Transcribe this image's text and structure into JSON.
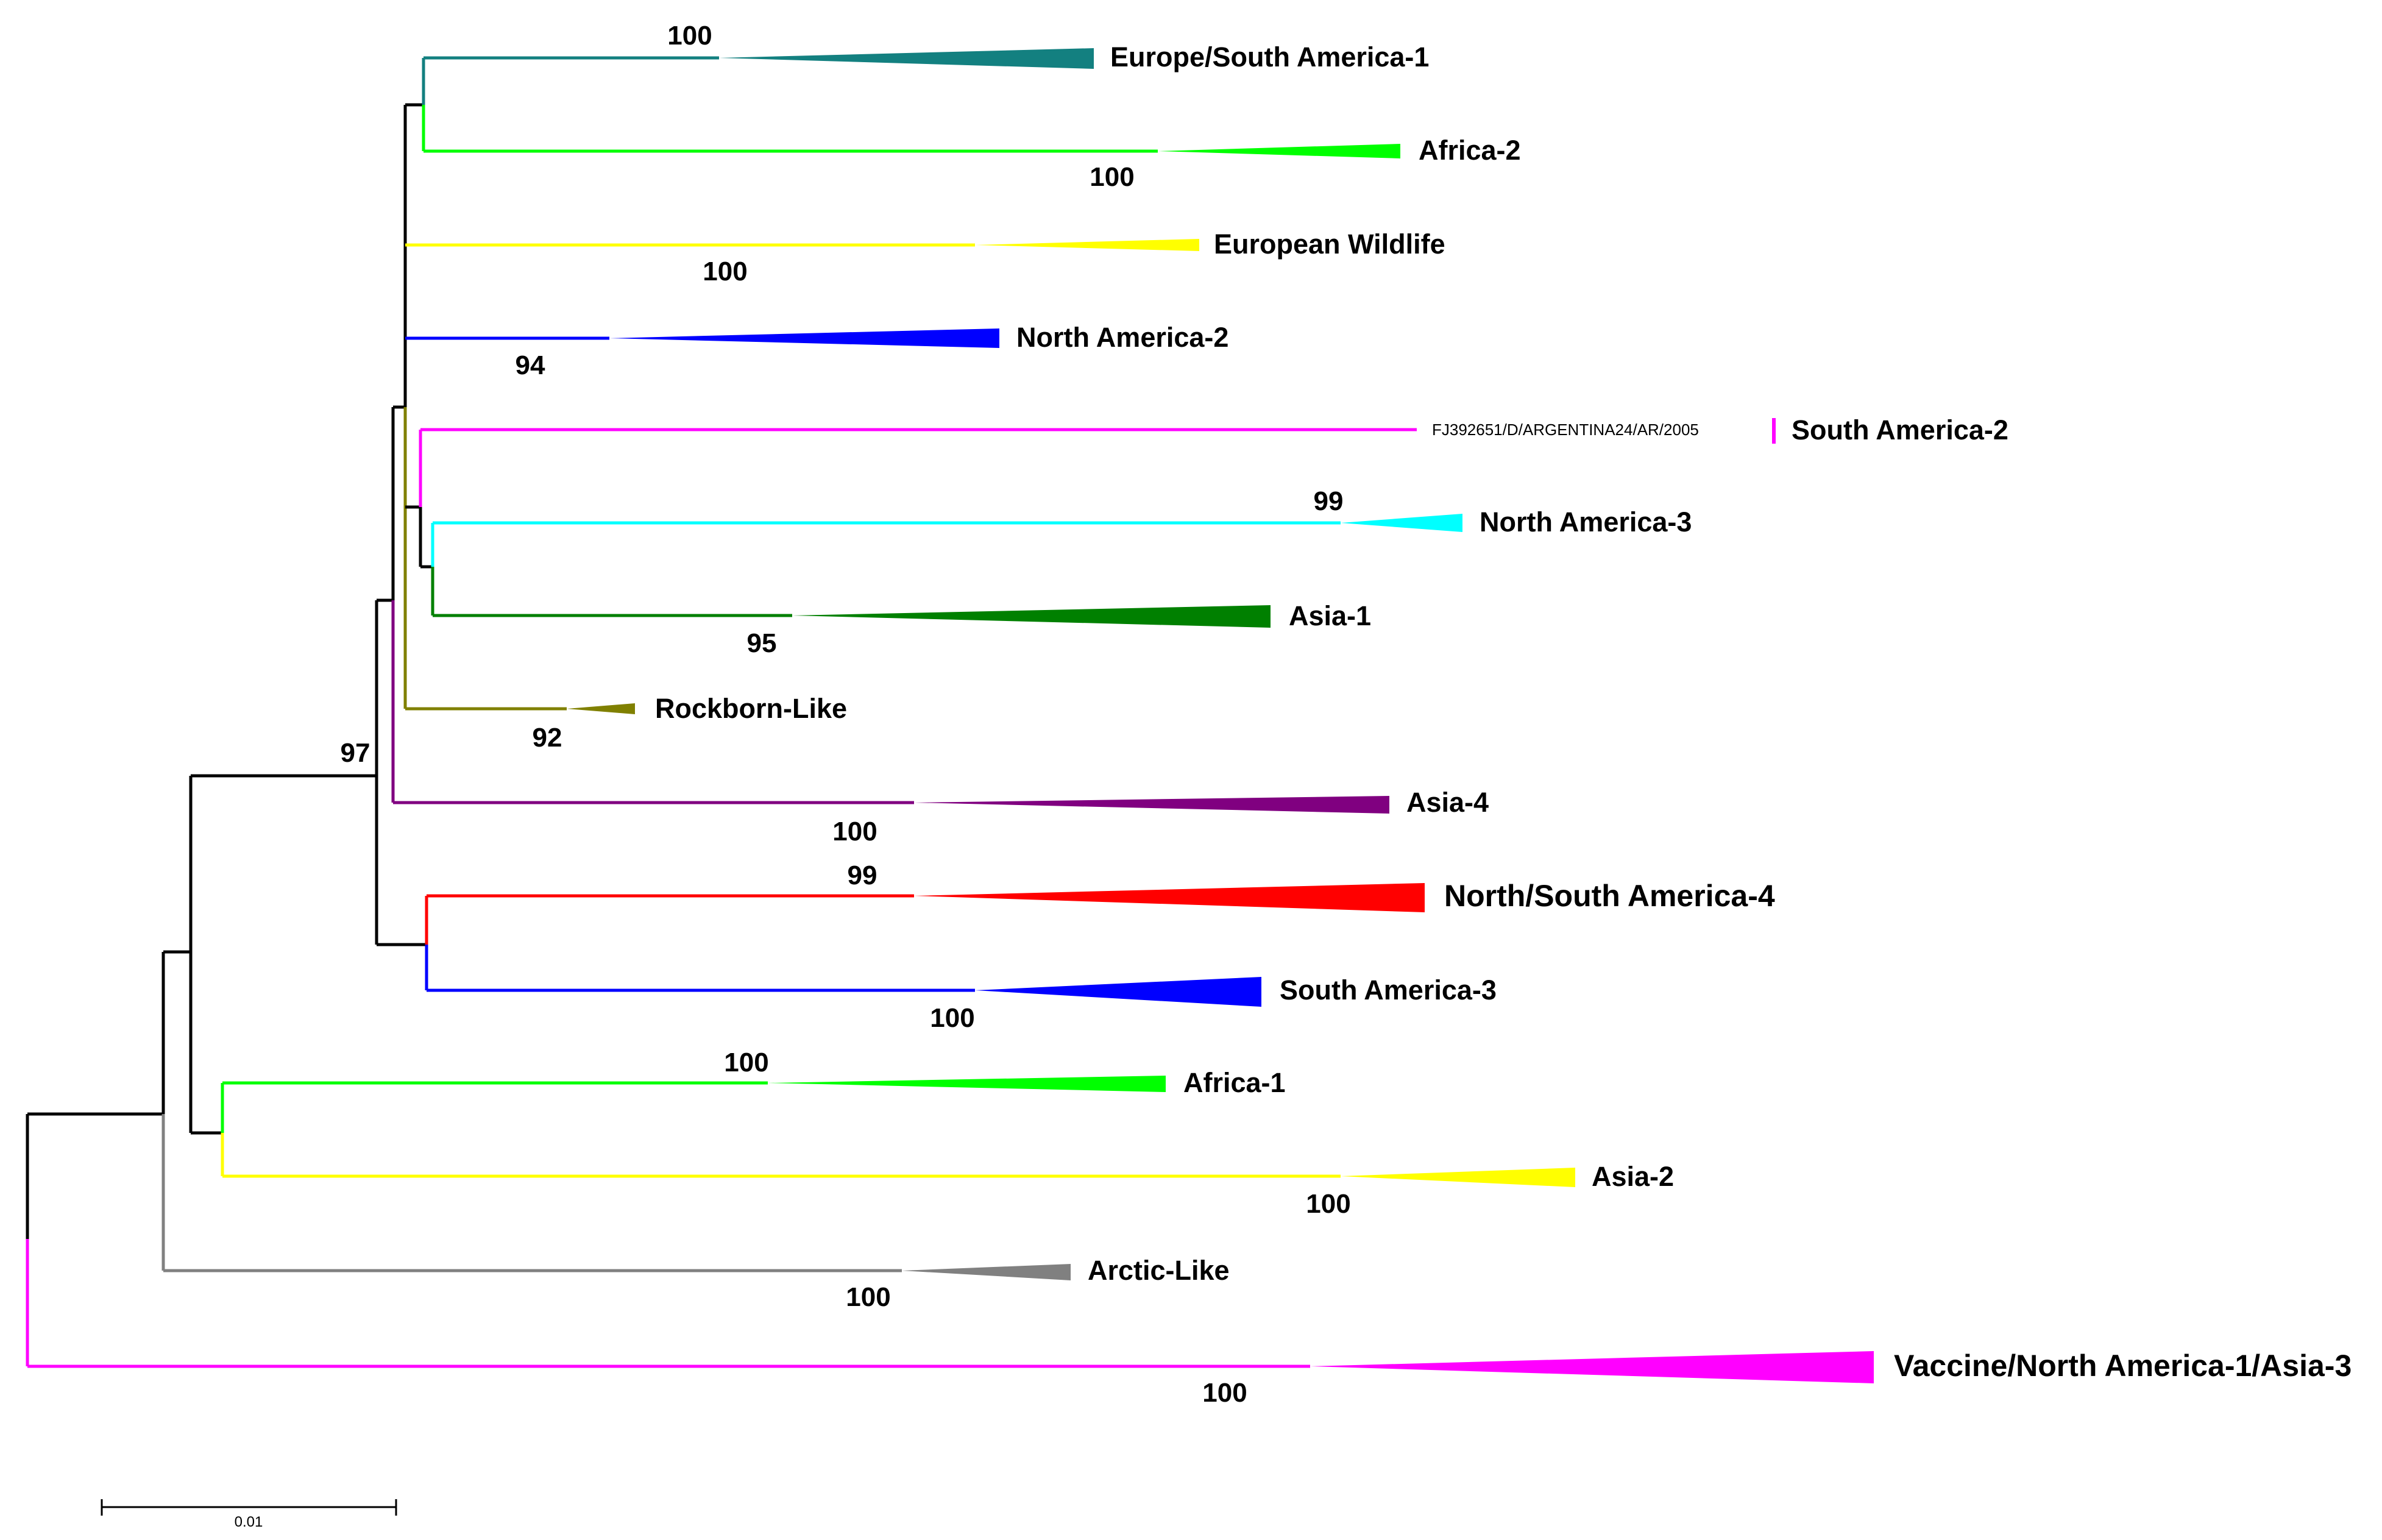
{
  "tree": {
    "colors": {
      "black": "#000000",
      "teal": "#138080",
      "green": "#00ff00",
      "yellow": "#ffff00",
      "blue": "#0000ff",
      "magenta": "#ff00ff",
      "cyan": "#00ffff",
      "dark_green": "#008000",
      "olive": "#808000",
      "purple": "#800080",
      "red": "#ff0000",
      "gray": "#808080"
    },
    "clades": [
      {
        "label": "Europe/South America-1",
        "bootstrap": "100",
        "color": "teal"
      },
      {
        "label": "Africa-2",
        "bootstrap": "100",
        "color": "green"
      },
      {
        "label": "European Wildlife",
        "bootstrap": "100",
        "color": "yellow"
      },
      {
        "label": "North America-2",
        "bootstrap": "94",
        "color": "blue"
      },
      {
        "label": "South America-2",
        "sequence": "FJ392651/D/ARGENTINA24/AR/2005",
        "color": "magenta"
      },
      {
        "label": "North America-3",
        "bootstrap": "99",
        "color": "cyan"
      },
      {
        "label": "Asia-1",
        "bootstrap": "95",
        "color": "dark_green"
      },
      {
        "label": "Rockborn-Like",
        "bootstrap": "92",
        "color": "olive"
      },
      {
        "label": "Asia-4",
        "bootstrap": "100",
        "color": "purple"
      },
      {
        "label": "North/South America-4",
        "bootstrap": "99",
        "color": "red"
      },
      {
        "label": "South America-3",
        "bootstrap": "100",
        "color": "blue"
      },
      {
        "label": "Africa-1",
        "bootstrap": "100",
        "color": "green"
      },
      {
        "label": "Asia-2",
        "bootstrap": "100",
        "color": "yellow"
      },
      {
        "label": "Arctic-Like",
        "bootstrap": "100",
        "color": "gray"
      },
      {
        "label": "Vaccine/North America-1/Asia-3",
        "bootstrap": "100",
        "color": "magenta"
      }
    ],
    "internal_bootstrap": "97",
    "scale_bar_label": "0.01"
  }
}
